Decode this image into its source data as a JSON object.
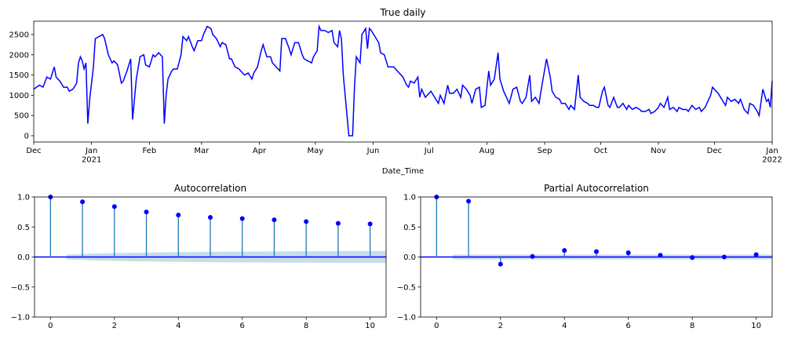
{
  "chart_data": [
    {
      "type": "line",
      "title": "True daily",
      "xlabel": "Date_Time",
      "color": "#0000ff",
      "xlim": [
        0,
        396
      ],
      "ylim": [
        -155,
        2830
      ],
      "xticks": [
        {
          "value": 0,
          "label": "Dec"
        },
        {
          "value": 31,
          "label": "Jan\n2021"
        },
        {
          "value": 62,
          "label": "Feb"
        },
        {
          "value": 90,
          "label": "Mar"
        },
        {
          "value": 121,
          "label": "Apr"
        },
        {
          "value": 151,
          "label": "May"
        },
        {
          "value": 182,
          "label": "Jun"
        },
        {
          "value": 212,
          "label": "Jul"
        },
        {
          "value": 243,
          "label": "Aug"
        },
        {
          "value": 274,
          "label": "Sep"
        },
        {
          "value": 304,
          "label": "Oct"
        },
        {
          "value": 335,
          "label": "Nov"
        },
        {
          "value": 365,
          "label": "Dec"
        },
        {
          "value": 396,
          "label": "Jan\n2022"
        }
      ],
      "yticks": [
        0,
        500,
        1000,
        1500,
        2000,
        2500
      ],
      "x": [
        0,
        3,
        5,
        7,
        9,
        11,
        12,
        14,
        16,
        18,
        19,
        21,
        23,
        24,
        25,
        26,
        27,
        28,
        29,
        30,
        32,
        33,
        35,
        37,
        38,
        40,
        42,
        43,
        45,
        47,
        48,
        50,
        52,
        53,
        55,
        57,
        59,
        60,
        62,
        64,
        65,
        67,
        69,
        70,
        71,
        72,
        74,
        75,
        77,
        79,
        80,
        82,
        83,
        85,
        86,
        88,
        90,
        91,
        93,
        95,
        96,
        98,
        100,
        101,
        103,
        105,
        106,
        108,
        110,
        112,
        113,
        115,
        117,
        118,
        120,
        122,
        123,
        125,
        127,
        128,
        130,
        132,
        133,
        135,
        137,
        138,
        140,
        142,
        144,
        145,
        147,
        149,
        150,
        152,
        153,
        154,
        156,
        158,
        160,
        161,
        163,
        164,
        165,
        166,
        168,
        169,
        170,
        171,
        172,
        173,
        175,
        176,
        178,
        179,
        180,
        181,
        183,
        185,
        186,
        188,
        190,
        192,
        193,
        195,
        197,
        198,
        200,
        201,
        202,
        204,
        206,
        207,
        208,
        210,
        212,
        213,
        215,
        217,
        218,
        220,
        222,
        223,
        225,
        227,
        229,
        230,
        232,
        234,
        235,
        237,
        239,
        240,
        242,
        244,
        245,
        247,
        249,
        250,
        252,
        254,
        255,
        257,
        259,
        261,
        262,
        264,
        266,
        267,
        269,
        271,
        272,
        275,
        277,
        278,
        280,
        282,
        283,
        285,
        287,
        288,
        290,
        292,
        293,
        295,
        297,
        298,
        300,
        302,
        303,
        305,
        306,
        308,
        309,
        311,
        313,
        314,
        316,
        318,
        319,
        321,
        323,
        325,
        326,
        328,
        330,
        331,
        333,
        335,
        336,
        338,
        340,
        341,
        343,
        345,
        346,
        348,
        350,
        351,
        353,
        355,
        357,
        358,
        360,
        362,
        363,
        364,
        366,
        367,
        369,
        371,
        372,
        374,
        376,
        378,
        379,
        381,
        383,
        384,
        386,
        388,
        389,
        391,
        393,
        394,
        395,
        396
      ],
      "values": [
        1150,
        1250,
        1200,
        1450,
        1400,
        1700,
        1450,
        1350,
        1200,
        1200,
        1100,
        1150,
        1300,
        1800,
        1950,
        1850,
        1650,
        1800,
        300,
        900,
        1700,
        2400,
        2450,
        2500,
        2400,
        2000,
        1800,
        1850,
        1750,
        1300,
        1350,
        1600,
        1900,
        400,
        1400,
        1950,
        2000,
        1750,
        1700,
        2000,
        1950,
        2050,
        1950,
        300,
        1000,
        1400,
        1600,
        1650,
        1650,
        2000,
        2450,
        2350,
        2450,
        2200,
        2100,
        2350,
        2350,
        2500,
        2700,
        2650,
        2500,
        2400,
        2200,
        2300,
        2250,
        1900,
        1900,
        1700,
        1650,
        1550,
        1500,
        1550,
        1400,
        1550,
        1700,
        2100,
        2250,
        1950,
        1950,
        1800,
        1700,
        1600,
        2400,
        2400,
        2150,
        2000,
        2300,
        2300,
        2000,
        1900,
        1850,
        1800,
        1950,
        2100,
        2700,
        2600,
        2600,
        2550,
        2600,
        2300,
        2200,
        2600,
        2400,
        1500,
        500,
        0,
        0,
        0,
        1200,
        1950,
        1800,
        2500,
        2650,
        2150,
        2650,
        2600,
        2450,
        2300,
        2050,
        2000,
        1700,
        1700,
        1700,
        1600,
        1500,
        1450,
        1250,
        1200,
        1350,
        1300,
        1450,
        950,
        1150,
        950,
        1050,
        1100,
        950,
        800,
        1000,
        800,
        1250,
        1050,
        1050,
        1150,
        950,
        1250,
        1150,
        1000,
        800,
        1150,
        1200,
        700,
        750,
        1600,
        1250,
        1400,
        2050,
        1400,
        1100,
        900,
        800,
        1150,
        1200,
        850,
        800,
        950,
        1500,
        850,
        950,
        800,
        1100,
        1900,
        1450,
        1100,
        950,
        900,
        800,
        800,
        650,
        750,
        650,
        1500,
        950,
        850,
        800,
        750,
        750,
        700,
        700,
        1100,
        1200,
        750,
        700,
        950,
        700,
        700,
        800,
        650,
        750,
        650,
        700,
        650,
        600,
        600,
        650,
        550,
        600,
        700,
        800,
        700,
        950,
        650,
        700,
        600,
        700,
        650,
        650,
        600,
        750,
        650,
        700,
        600,
        700,
        900,
        1000,
        1200,
        1100,
        1050,
        900,
        750,
        950,
        850,
        900,
        800,
        900,
        650,
        550,
        800,
        750,
        600,
        500,
        1150,
        850,
        900,
        700,
        1350
      ]
    },
    {
      "type": "stem",
      "title": "Autocorrelation",
      "color": "#1f77b4",
      "marker_color": "#0000ff",
      "xlim": [
        -0.5,
        10.5
      ],
      "ylim": [
        -1,
        1
      ],
      "xticks": [
        0,
        2,
        4,
        6,
        8,
        10
      ],
      "yticks": [
        {
          "value": -1,
          "label": "−1.0"
        },
        {
          "value": -0.5,
          "label": "−0.5"
        },
        {
          "value": 0,
          "label": "0.0"
        },
        0.5,
        {
          "value": 1,
          "label": "1.0"
        }
      ],
      "x": [
        0,
        1,
        2,
        3,
        4,
        5,
        6,
        7,
        8,
        9,
        10
      ],
      "values": [
        1.0,
        0.92,
        0.84,
        0.75,
        0.7,
        0.66,
        0.64,
        0.62,
        0.59,
        0.56,
        0.55
      ],
      "confint": {
        "x": [
          0.5,
          1.5,
          2.5,
          3.5,
          4.5,
          5.5,
          6.5,
          7.5,
          8.5,
          9.5,
          10.5
        ],
        "upper": [
          0.04,
          0.06,
          0.07,
          0.078,
          0.084,
          0.088,
          0.091,
          0.094,
          0.097,
          0.099,
          0.1
        ],
        "lower": [
          -0.04,
          -0.06,
          -0.07,
          -0.078,
          -0.084,
          -0.088,
          -0.091,
          -0.094,
          -0.097,
          -0.099,
          -0.1
        ]
      }
    },
    {
      "type": "stem",
      "title": "Partial Autocorrelation",
      "color": "#1f77b4",
      "marker_color": "#0000ff",
      "xlim": [
        -0.5,
        10.5
      ],
      "ylim": [
        -1,
        1
      ],
      "xticks": [
        0,
        2,
        4,
        6,
        8,
        10
      ],
      "yticks": [
        {
          "value": -1,
          "label": "−1.0"
        },
        {
          "value": -0.5,
          "label": "−0.5"
        },
        {
          "value": 0,
          "label": "0.0"
        },
        0.5,
        {
          "value": 1,
          "label": "1.0"
        }
      ],
      "x": [
        0,
        1,
        2,
        3,
        4,
        5,
        6,
        7,
        8,
        9,
        10
      ],
      "values": [
        1.0,
        0.93,
        -0.12,
        0.01,
        0.11,
        0.09,
        0.07,
        0.03,
        -0.01,
        0.0,
        0.04
      ],
      "confint": {
        "x": [
          0.5,
          10.5
        ],
        "upper": [
          0.04,
          0.04
        ],
        "lower": [
          -0.04,
          -0.04
        ]
      }
    }
  ]
}
